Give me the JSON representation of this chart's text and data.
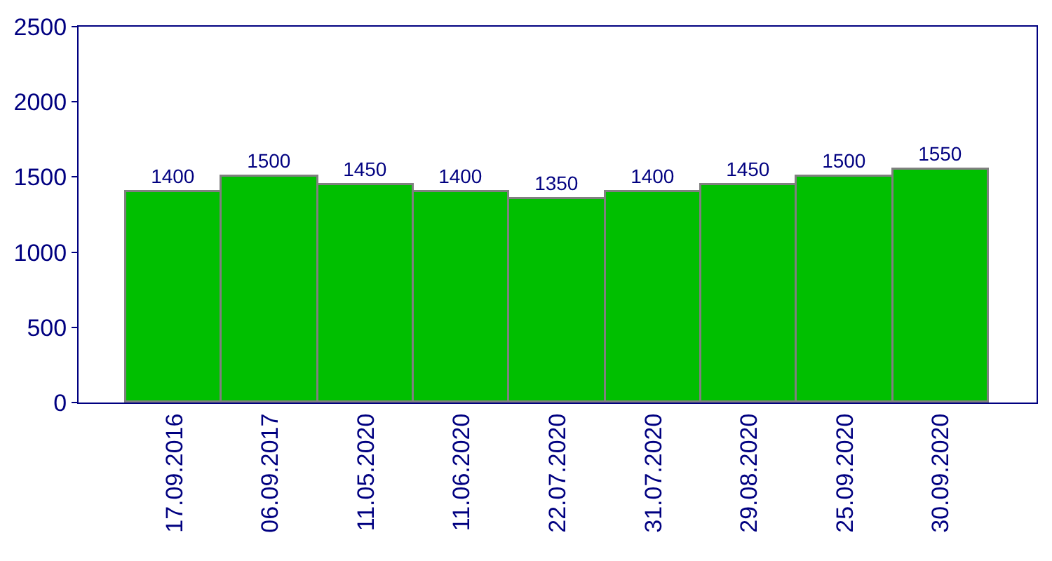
{
  "chart_data": {
    "type": "bar",
    "categories": [
      "17.09.2016",
      "06.09.2017",
      "11.05.2020",
      "11.06.2020",
      "22.07.2020",
      "31.07.2020",
      "29.08.2020",
      "25.09.2020",
      "30.09.2020"
    ],
    "values": [
      1400,
      1500,
      1450,
      1400,
      1350,
      1400,
      1450,
      1500,
      1550
    ],
    "color": "#00bf00",
    "ylim": [
      0,
      2500
    ],
    "yticks": [
      0,
      500,
      1000,
      1500,
      2000,
      2500
    ],
    "data_labels": true,
    "legend": false
  }
}
